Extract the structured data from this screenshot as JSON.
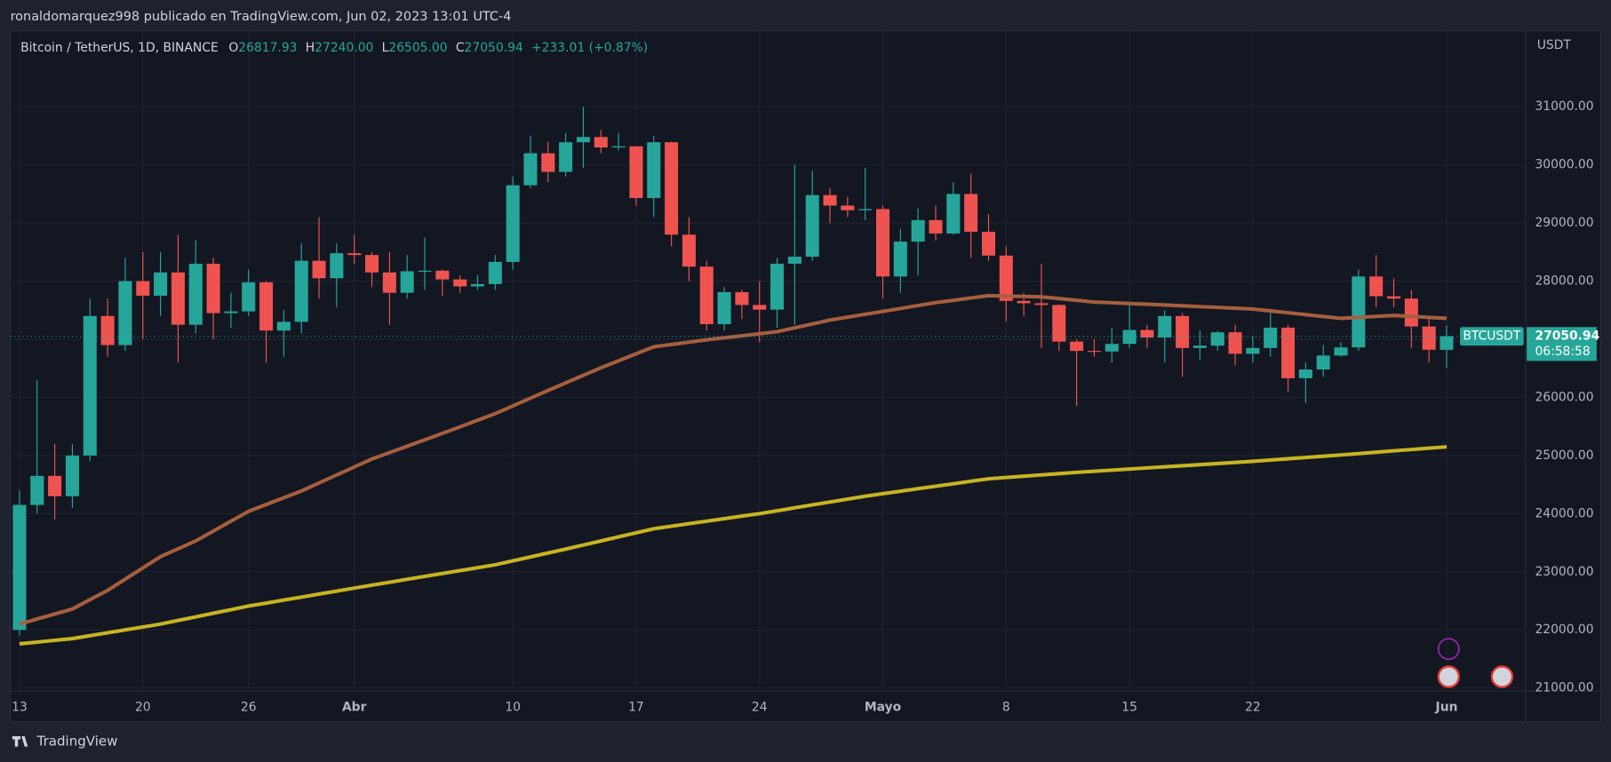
{
  "header": {
    "title": "ronaldomarquez998 publicado en TradingView.com, Jun 02, 2023 13:01 UTC-4"
  },
  "legend": {
    "symbol": "Bitcoin / TetherUS, 1D, BINANCE",
    "fields": [
      {
        "key": "O",
        "value": "26817.93"
      },
      {
        "key": "H",
        "value": "27240.00"
      },
      {
        "key": "L",
        "value": "26505.00"
      },
      {
        "key": "C",
        "value": "27050.94"
      }
    ],
    "change": "+233.01 (+0.87%)"
  },
  "footer": {
    "brand": "TradingView"
  },
  "chart_data": {
    "type": "candlestick",
    "y_unit": "USDT",
    "categories": [
      "13",
      null,
      null,
      null,
      null,
      null,
      null,
      "20",
      null,
      null,
      null,
      null,
      null,
      "26",
      null,
      null,
      null,
      null,
      null,
      "Abr",
      null,
      null,
      null,
      null,
      null,
      null,
      null,
      null,
      "10",
      null,
      null,
      null,
      null,
      null,
      null,
      "17",
      null,
      null,
      null,
      null,
      null,
      null,
      "24",
      null,
      null,
      null,
      null,
      null,
      null,
      "Mayo",
      null,
      null,
      null,
      null,
      null,
      null,
      "8",
      null,
      null,
      null,
      null,
      null,
      null,
      "15",
      null,
      null,
      null,
      null,
      null,
      null,
      "22",
      null,
      null,
      null,
      null,
      null,
      null,
      null,
      null,
      null,
      null,
      "Jun"
    ],
    "open": [
      22000,
      24150,
      24650,
      24300,
      25000,
      27400,
      26900,
      28000,
      27750,
      28150,
      27250,
      28300,
      27450,
      27480,
      27980,
      27150,
      27300,
      28350,
      28050,
      28480,
      28450,
      28150,
      27800,
      28170,
      28180,
      28030,
      27910,
      27950,
      28330,
      29650,
      30200,
      29880,
      30390,
      30480,
      30300,
      30320,
      29430,
      30390,
      28800,
      28250,
      27260,
      27810,
      27590,
      27510,
      28300,
      28420,
      29480,
      29300,
      29220,
      29240,
      28080,
      28680,
      29050,
      28820,
      29500,
      28850,
      28440,
      27660,
      27620,
      27590,
      26960,
      26800,
      26790,
      26920,
      27160,
      27030,
      27400,
      26850,
      26890,
      27120,
      26750,
      26850,
      27200,
      26330,
      26480,
      26720,
      26860,
      28080,
      27740,
      27700,
      27220,
      26817.93
    ],
    "high": [
      24400,
      26300,
      25200,
      25200,
      27700,
      27700,
      28400,
      28500,
      28500,
      28800,
      28700,
      28400,
      27800,
      28200,
      28000,
      27500,
      28650,
      29100,
      28650,
      28800,
      28500,
      28500,
      28450,
      28750,
      28200,
      28100,
      28100,
      28450,
      29800,
      30500,
      30400,
      30550,
      31000,
      30600,
      30550,
      30320,
      30500,
      30400,
      29100,
      28350,
      27900,
      27850,
      28000,
      28400,
      30000,
      29900,
      29600,
      29450,
      29950,
      29300,
      28900,
      29250,
      29300,
      29700,
      29850,
      29150,
      28600,
      27800,
      28300,
      27600,
      27000,
      27000,
      27200,
      27650,
      27250,
      27500,
      27450,
      27150,
      27150,
      27250,
      27050,
      27450,
      27250,
      26600,
      26900,
      26950,
      28200,
      28450,
      28050,
      27850,
      27350,
      27240
    ],
    "low": [
      21900,
      24000,
      23900,
      24100,
      24900,
      26700,
      26800,
      27000,
      27400,
      26600,
      27100,
      27000,
      27200,
      27400,
      26600,
      26700,
      27100,
      27700,
      27550,
      28300,
      27900,
      27250,
      27700,
      27850,
      27750,
      27800,
      27850,
      27850,
      28200,
      29600,
      29700,
      29800,
      29950,
      30200,
      30250,
      29300,
      29100,
      28600,
      28000,
      27150,
      27150,
      27350,
      26950,
      27200,
      27250,
      28350,
      29000,
      29100,
      29050,
      27700,
      27800,
      28100,
      28700,
      28800,
      28400,
      28350,
      27300,
      27400,
      26850,
      26800,
      25850,
      26700,
      26600,
      26850,
      26850,
      26600,
      26350,
      26650,
      26800,
      26550,
      26600,
      26700,
      26100,
      25900,
      26350,
      26700,
      26800,
      27550,
      27550,
      26850,
      26600,
      26505
    ],
    "close": [
      24150,
      24650,
      24300,
      25000,
      27400,
      26900,
      28000,
      27750,
      28150,
      27250,
      28300,
      27450,
      27480,
      27980,
      27150,
      27300,
      28350,
      28050,
      28480,
      28450,
      28150,
      27800,
      28170,
      28180,
      28030,
      27910,
      27950,
      28330,
      29650,
      30200,
      29880,
      30390,
      30480,
      30300,
      30320,
      29430,
      30390,
      28800,
      28250,
      27260,
      27810,
      27590,
      27510,
      28300,
      28420,
      29480,
      29300,
      29220,
      29240,
      28080,
      28680,
      29050,
      28820,
      29500,
      28850,
      28440,
      27660,
      27620,
      27590,
      26960,
      26800,
      26790,
      26920,
      27160,
      27030,
      27400,
      26850,
      26890,
      27120,
      26750,
      26850,
      27200,
      26330,
      26480,
      26720,
      26860,
      28080,
      27740,
      27700,
      27220,
      26820,
      27050.94
    ],
    "up_color": "#26a69a",
    "down_color": "#ef5350",
    "overlays": [
      {
        "color": "#a65f3e",
        "values": [
          22100,
          22187,
          22273,
          22360,
          22520,
          22680,
          22873,
          23067,
          23260,
          23395,
          23530,
          23700,
          23870,
          24040,
          24157,
          24273,
          24390,
          24528,
          24665,
          24803,
          24940,
          25050,
          25160,
          25270,
          25380,
          25493,
          25607,
          25720,
          25853,
          25987,
          26120,
          26250,
          26380,
          26510,
          26630,
          26750,
          26870,
          26910,
          26950,
          26990,
          27025,
          27060,
          27095,
          27130,
          27197,
          27263,
          27330,
          27380,
          27430,
          27480,
          27530,
          27580,
          27630,
          27670,
          27710,
          27750,
          27743,
          27737,
          27730,
          27700,
          27670,
          27640,
          27628,
          27615,
          27603,
          27590,
          27576,
          27562,
          27548,
          27534,
          27520,
          27488,
          27456,
          27424,
          27392,
          27360,
          27377,
          27393,
          27410,
          27393,
          27377,
          27360
        ]
      },
      {
        "color": "#c8b422",
        "values": [
          21760,
          21790,
          21820,
          21850,
          21900,
          21950,
          22000,
          22050,
          22100,
          22162,
          22224,
          22286,
          22348,
          22410,
          22461,
          22513,
          22564,
          22616,
          22667,
          22719,
          22770,
          22820,
          22870,
          22920,
          22970,
          23020,
          23070,
          23120,
          23188,
          23255,
          23323,
          23390,
          23460,
          23530,
          23600,
          23670,
          23740,
          23783,
          23827,
          23870,
          23913,
          23957,
          24000,
          24050,
          24100,
          24150,
          24200,
          24250,
          24300,
          24343,
          24386,
          24429,
          24471,
          24514,
          24557,
          24600,
          24622,
          24644,
          24666,
          24688,
          24710,
          24729,
          24748,
          24767,
          24786,
          24805,
          24824,
          24843,
          24862,
          24881,
          24900,
          24922,
          24944,
          24966,
          24988,
          25010,
          25033,
          25057,
          25080,
          25103,
          25127,
          25150
        ]
      }
    ],
    "ylim": [
      20947,
      32307
    ],
    "yticks": [
      {
        "value": 21000,
        "label": "21000.00"
      },
      {
        "value": 22000,
        "label": "22000.00"
      },
      {
        "value": 23000,
        "label": "23000.00"
      },
      {
        "value": 24000,
        "label": "24000.00"
      },
      {
        "value": 25000,
        "label": "25000.00"
      },
      {
        "value": 26000,
        "label": "26000.00"
      },
      {
        "value": 27000,
        "label": "27000.00"
      },
      {
        "value": 28000,
        "label": "28000.00"
      },
      {
        "value": 29000,
        "label": "29000.00"
      },
      {
        "value": 30000,
        "label": "30000.00"
      },
      {
        "value": 31000,
        "label": "31000.00"
      }
    ],
    "grid": true,
    "price_tag": {
      "symbol": "BTCUSDT",
      "countdown": "06:58:58"
    }
  }
}
